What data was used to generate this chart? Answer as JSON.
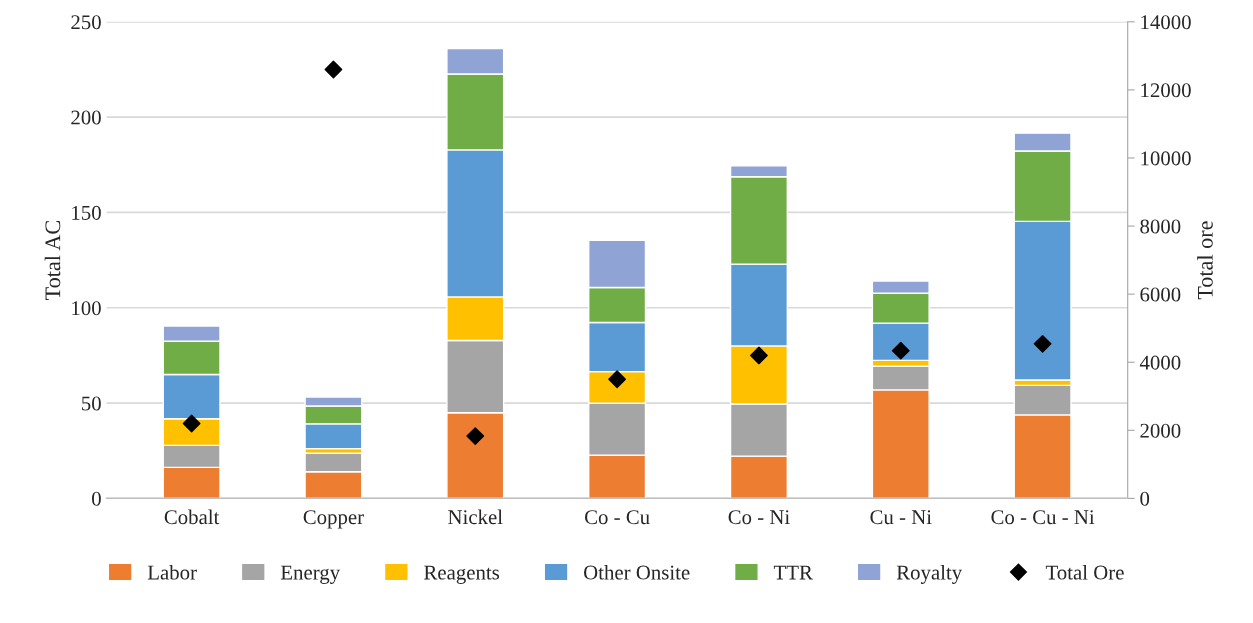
{
  "chart_data": {
    "type": "bar",
    "stacked": true,
    "xlabel": null,
    "ylabel": "Total AC",
    "y2label": "Total ore",
    "categories": [
      "Cobalt",
      "Copper",
      "Nickel",
      "Co - Cu",
      "Co - Ni",
      "Cu - Ni",
      "Co - Cu - Ni"
    ],
    "series": [
      {
        "name": "Labor",
        "color": "#ed7d31",
        "values": [
          16.3,
          14.0,
          44.9,
          22.6,
          22.2,
          56.9,
          43.8
        ]
      },
      {
        "name": "Energy",
        "color": "#a5a5a5",
        "values": [
          11.5,
          9.7,
          37.9,
          27.4,
          27.3,
          12.5,
          15.5
        ]
      },
      {
        "name": "Reagents",
        "color": "#ffc000",
        "values": [
          14.0,
          2.4,
          22.9,
          16.5,
          30.5,
          3.0,
          2.8
        ]
      },
      {
        "name": "Other Onsite",
        "color": "#5b9bd5",
        "values": [
          23.2,
          13.0,
          77.1,
          25.8,
          42.9,
          19.5,
          83.2
        ]
      },
      {
        "name": "TTR",
        "color": "#70ad47",
        "values": [
          17.5,
          9.4,
          39.8,
          18.3,
          45.8,
          15.7,
          36.9
        ]
      },
      {
        "name": "Royalty",
        "color": "#8fa4d4",
        "values": [
          7.9,
          4.7,
          13.4,
          24.8,
          5.7,
          6.4,
          9.4
        ]
      },
      {
        "name": "Total Ore",
        "color": "#000000",
        "type": "scatter",
        "axis": "y2",
        "marker": "diamond",
        "values": [
          2200,
          12600,
          1830,
          3500,
          4200,
          4340,
          4540
        ]
      }
    ],
    "ylim": [
      0,
      250
    ],
    "yticks": [
      0,
      50,
      100,
      150,
      200,
      250
    ],
    "y2lim": [
      0,
      14000
    ],
    "y2ticks": [
      0,
      2000,
      4000,
      6000,
      8000,
      10000,
      12000,
      14000
    ],
    "grid": "y",
    "legend": "bottom"
  }
}
